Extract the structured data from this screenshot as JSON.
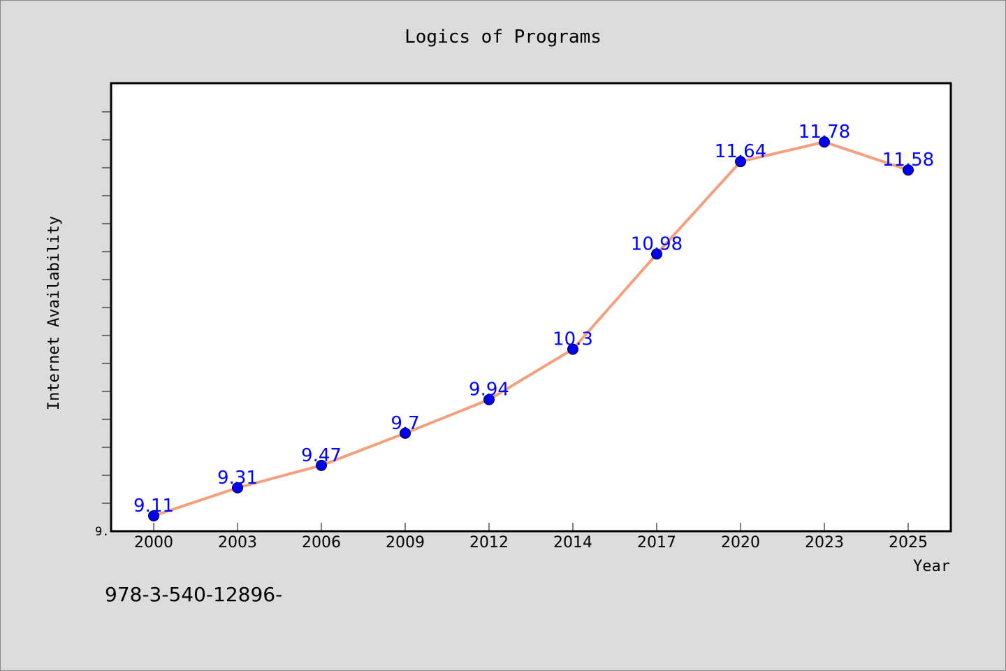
{
  "chart_data": {
    "type": "line",
    "title": "Logics of Programs",
    "xlabel": "Year",
    "ylabel": "Internet Availability",
    "y_tick_label": "9.",
    "categories": [
      "2000",
      "2003",
      "2006",
      "2009",
      "2012",
      "2014",
      "2017",
      "2020",
      "2023",
      "2025"
    ],
    "series": [
      {
        "values": [
          9.11,
          9.31,
          9.47,
          9.7,
          9.94,
          10.3,
          10.98,
          11.64,
          11.78,
          11.58
        ]
      }
    ],
    "data_labels": [
      "9.11",
      "9.31",
      "9.47",
      "9.7",
      "9.94",
      "10.3",
      "10.98",
      "11.64",
      "11.78",
      "11.58"
    ],
    "ylim": [
      9.0,
      12.2
    ],
    "grid": false,
    "line_color": "#f4a07f",
    "marker_color": "#0000ee",
    "label_color": "#0000ff",
    "background": "#dcdcdc",
    "plot_background": "#ffffff"
  },
  "footer": {
    "text": "978-3-540-12896-"
  }
}
